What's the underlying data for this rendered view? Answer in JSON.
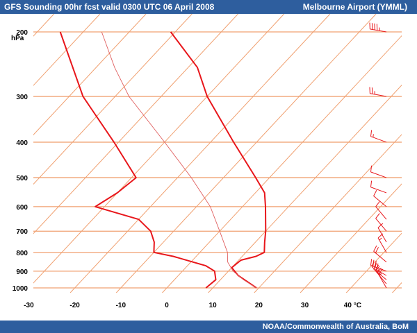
{
  "header": {
    "title": "GFS Sounding 00hr fcst valid 0300 UTC  06 April 2008",
    "location": "Melbourne Airport (YMML)"
  },
  "footer": {
    "credit": "NOAA/Commonwealth of  Australia, BoM"
  },
  "colors": {
    "bar": "#2e5e9e",
    "isobar": "#f0a070",
    "isotherm": "#f0a070",
    "profile": "#e8161b",
    "adiabat": "#e06060"
  },
  "chart_data": {
    "type": "line",
    "chart_kind": "skew-T log-P sounding",
    "pressure_unit_label": "hPa",
    "temperature_unit_label": "°C",
    "pressure_levels": [
      200,
      300,
      400,
      500,
      600,
      700,
      800,
      900,
      1000
    ],
    "pressure_labels": [
      "200",
      "300",
      "400",
      "500",
      "600",
      "700",
      "800",
      "900",
      "1000"
    ],
    "temperature_ticks": [
      -30,
      -20,
      -10,
      0,
      10,
      20,
      30,
      40
    ],
    "temperature_tick_labels": [
      "-30",
      "-20",
      "-10",
      "0",
      "10",
      "20",
      "30",
      "40 °C"
    ],
    "plim": [
      200,
      1040
    ],
    "series": [
      {
        "role": "temperature",
        "points": [
          [
            1000,
            19.5
          ],
          [
            925,
            13
          ],
          [
            880,
            10
          ],
          [
            840,
            10.5
          ],
          [
            820,
            13
          ],
          [
            800,
            14
          ],
          [
            750,
            12
          ],
          [
            700,
            10
          ],
          [
            600,
            5
          ],
          [
            550,
            2
          ],
          [
            500,
            -3
          ],
          [
            400,
            -15
          ],
          [
            300,
            -30
          ],
          [
            250,
            -38
          ],
          [
            200,
            -51
          ]
        ]
      },
      {
        "role": "dewpoint",
        "points": [
          [
            1000,
            8.5
          ],
          [
            950,
            9
          ],
          [
            900,
            7
          ],
          [
            870,
            4
          ],
          [
            820,
            -5
          ],
          [
            800,
            -10
          ],
          [
            750,
            -12
          ],
          [
            700,
            -15
          ],
          [
            650,
            -20
          ],
          [
            600,
            -32
          ],
          [
            550,
            -30
          ],
          [
            500,
            -29
          ],
          [
            400,
            -41
          ],
          [
            300,
            -57
          ],
          [
            200,
            -75
          ]
        ]
      },
      {
        "role": "parcel",
        "points": [
          [
            1000,
            19.5
          ],
          [
            950,
            15
          ],
          [
            900,
            11
          ],
          [
            850,
            8
          ],
          [
            800,
            6
          ],
          [
            700,
            0
          ],
          [
            600,
            -7
          ],
          [
            500,
            -17
          ],
          [
            400,
            -30
          ],
          [
            300,
            -47
          ],
          [
            250,
            -56
          ],
          [
            200,
            -66
          ]
        ]
      }
    ],
    "wind_barbs": [
      {
        "p": 1000,
        "dir": 330,
        "kt": 15
      },
      {
        "p": 975,
        "dir": 320,
        "kt": 25
      },
      {
        "p": 950,
        "dir": 310,
        "kt": 25
      },
      {
        "p": 925,
        "dir": 300,
        "kt": 30
      },
      {
        "p": 900,
        "dir": 290,
        "kt": 30
      },
      {
        "p": 850,
        "dir": 310,
        "kt": 20
      },
      {
        "p": 800,
        "dir": 330,
        "kt": 15
      },
      {
        "p": 750,
        "dir": 330,
        "kt": 10
      },
      {
        "p": 700,
        "dir": 320,
        "kt": 10
      },
      {
        "p": 650,
        "dir": 320,
        "kt": 10
      },
      {
        "p": 600,
        "dir": 310,
        "kt": 10
      },
      {
        "p": 550,
        "dir": 290,
        "kt": 10
      },
      {
        "p": 500,
        "dir": 290,
        "kt": 10
      },
      {
        "p": 400,
        "dir": 290,
        "kt": 15
      },
      {
        "p": 300,
        "dir": 280,
        "kt": 25
      },
      {
        "p": 200,
        "dir": 280,
        "kt": 45
      }
    ]
  }
}
